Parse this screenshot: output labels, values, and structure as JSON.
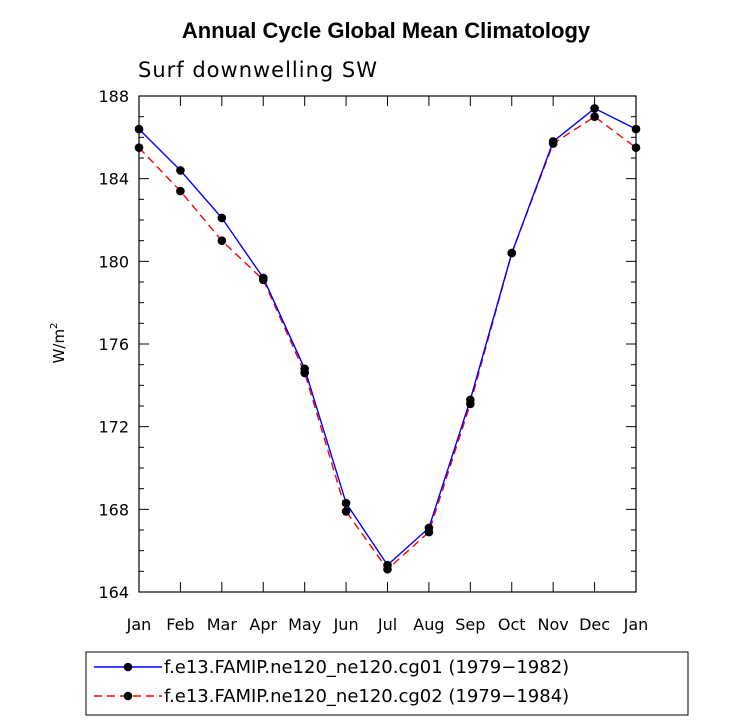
{
  "chart_data": {
    "type": "line",
    "title": "Annual Cycle Global Mean Climatology",
    "subtitle": "Surf downwelling SW",
    "ylabel_base": "W/m",
    "ylabel_sup": "2",
    "xlabel": "",
    "ylim": [
      164,
      188
    ],
    "yticks": [
      164,
      168,
      172,
      176,
      180,
      184,
      188
    ],
    "categories": [
      "Jan",
      "Feb",
      "Mar",
      "Apr",
      "May",
      "Jun",
      "Jul",
      "Aug",
      "Sep",
      "Oct",
      "Nov",
      "Dec",
      "Jan"
    ],
    "series": [
      {
        "name": "f.e13.FAMIP.ne120_ne120.cg01 (1979−1982)",
        "color": "#0000ff",
        "dash": "solid",
        "values": [
          186.4,
          184.4,
          182.1,
          179.2,
          174.8,
          168.3,
          165.3,
          167.1,
          173.3,
          180.4,
          185.8,
          187.4,
          186.4
        ]
      },
      {
        "name": "f.e13.FAMIP.ne120_ne120.cg02 (1979−1984)",
        "color": "#ff0000",
        "dash": "dashed",
        "values": [
          185.5,
          183.4,
          181.0,
          179.1,
          174.6,
          167.9,
          165.1,
          166.9,
          173.1,
          180.4,
          185.7,
          187.0,
          185.5
        ]
      }
    ],
    "legend_position": "bottom"
  }
}
